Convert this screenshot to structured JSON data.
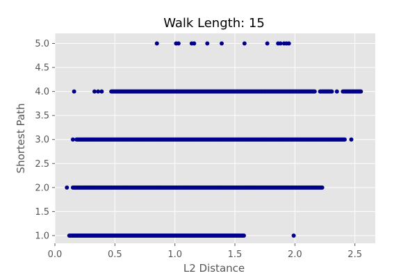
{
  "chart_data": {
    "type": "scatter",
    "title": "Walk Length: 15",
    "xlabel": "L2 Distance",
    "ylabel": "Shortest Path",
    "xlim": [
      0.0,
      2.67
    ],
    "ylim": [
      0.84,
      5.21
    ],
    "xticks": [
      0.0,
      0.5,
      1.0,
      1.5,
      2.0,
      2.5
    ],
    "xtick_labels": [
      "0.0",
      "0.5",
      "1.0",
      "1.5",
      "2.0",
      "2.5"
    ],
    "yticks": [
      1.0,
      1.5,
      2.0,
      2.5,
      3.0,
      3.5,
      4.0,
      4.5,
      5.0
    ],
    "ytick_labels": [
      "1.0",
      "1.5",
      "2.0",
      "2.5",
      "3.0",
      "3.5",
      "4.0",
      "4.5",
      "5.0"
    ],
    "grid": true,
    "background_color": "#e5e5e5",
    "marker_color": "#00008b",
    "series": [
      {
        "values": [
          {
            "y": 1,
            "ranges": [
              [
                0.12,
                1.58
              ]
            ],
            "x": [
              1.99
            ]
          },
          {
            "y": 2,
            "ranges": [
              [
                0.15,
                2.23
              ]
            ],
            "x": [
              0.1
            ]
          },
          {
            "y": 3,
            "ranges": [
              [
                0.18,
                2.42
              ]
            ],
            "x": [
              0.15,
              2.47
            ]
          },
          {
            "y": 4,
            "ranges": [
              [
                0.47,
                2.17
              ],
              [
                2.21,
                2.31
              ],
              [
                2.4,
                2.55
              ]
            ],
            "x": [
              0.16,
              0.33,
              0.36,
              0.39,
              2.35
            ]
          },
          {
            "y": 5,
            "ranges": [],
            "x": [
              0.85,
              1.01,
              1.03,
              1.14,
              1.16,
              1.27,
              1.39,
              1.58,
              1.77,
              1.86,
              1.88,
              1.91,
              1.93,
              1.95
            ]
          }
        ]
      }
    ]
  }
}
